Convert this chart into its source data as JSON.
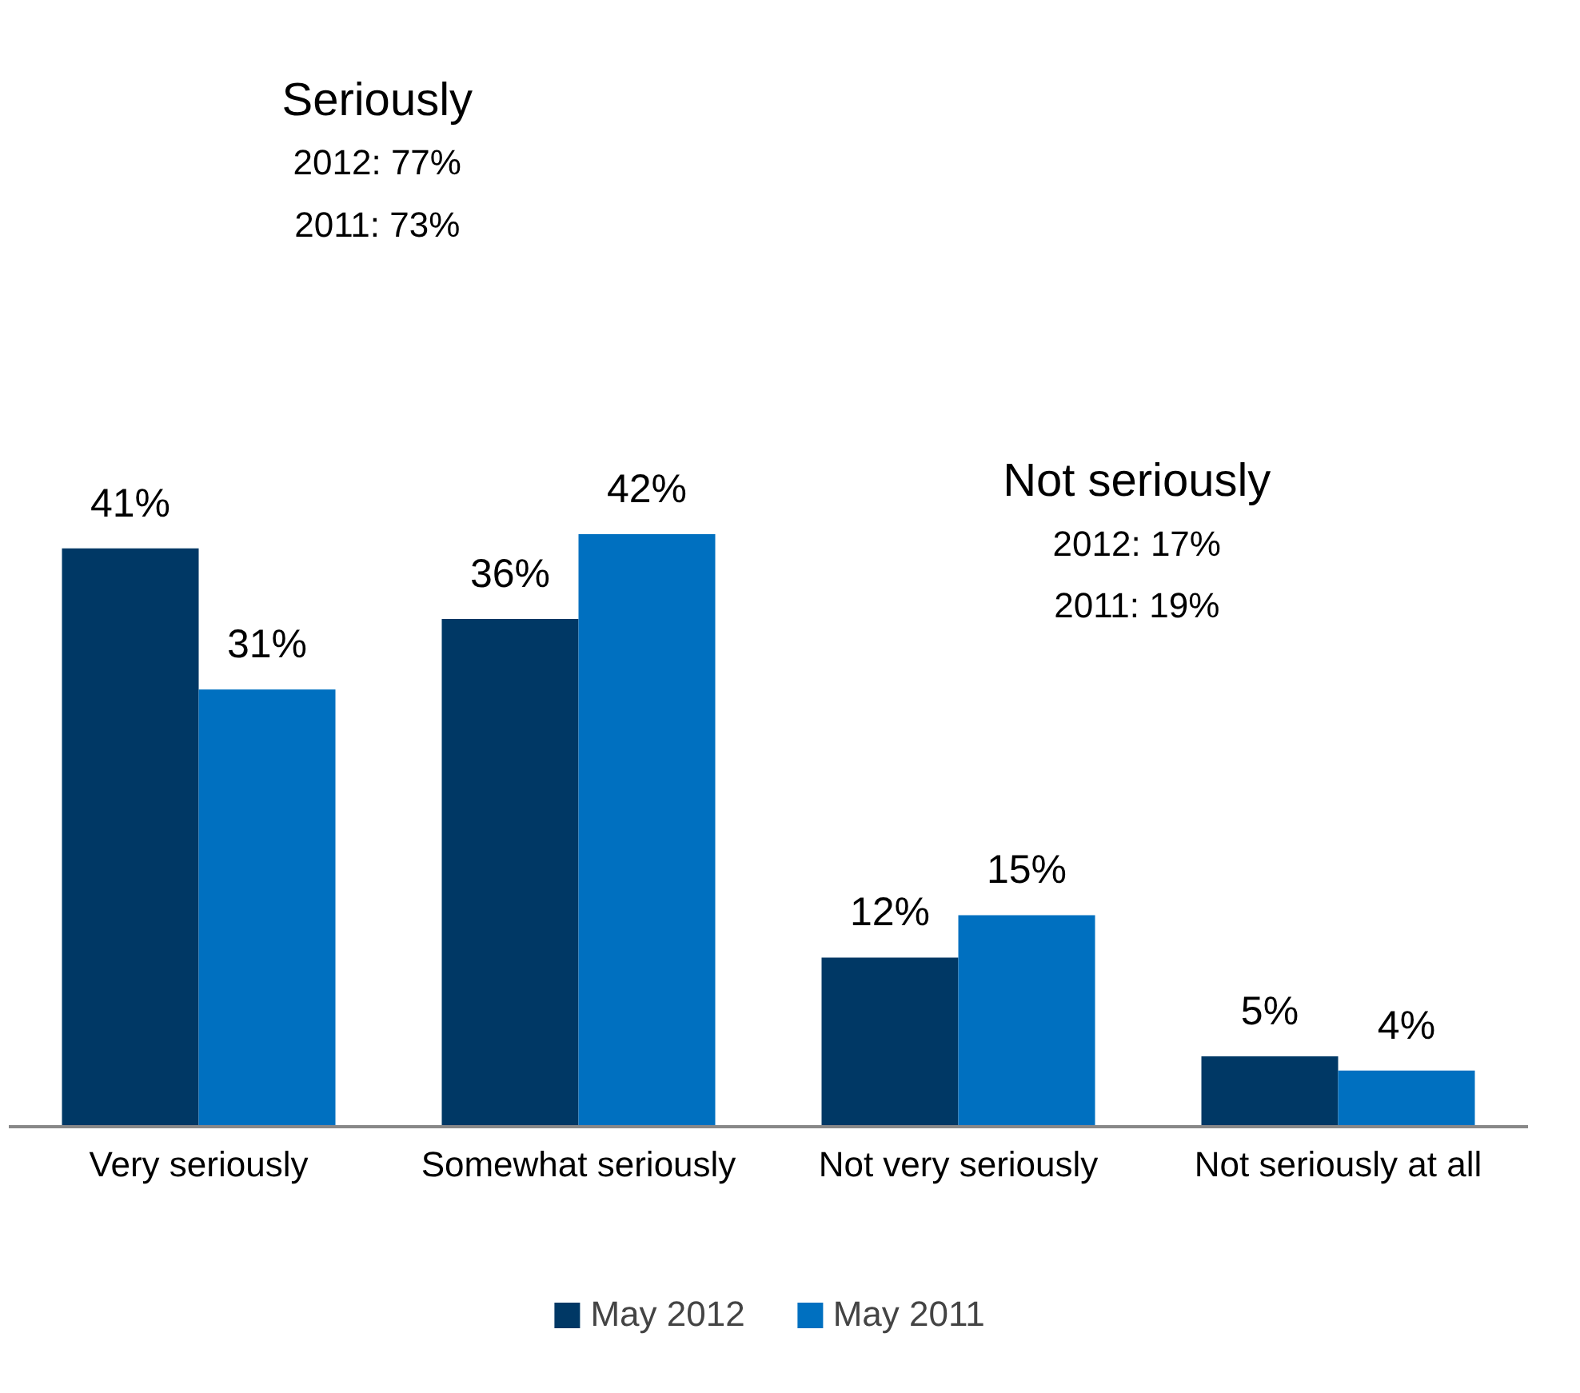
{
  "chart_data": {
    "type": "bar",
    "categories": [
      "Very seriously",
      "Somewhat seriously",
      "Not very seriously",
      "Not seriously at all"
    ],
    "series": [
      {
        "name": "May 2012",
        "color": "#003865",
        "values": [
          41,
          36,
          12,
          5
        ],
        "value_labels": [
          "41%",
          "36%",
          "12%",
          "5%"
        ]
      },
      {
        "name": "May 2011",
        "color": "#0070c0",
        "values": [
          31,
          42,
          15,
          4
        ],
        "value_labels": [
          "31%",
          "42%",
          "15%",
          "4%"
        ]
      }
    ],
    "grid": false,
    "legend": "bottom",
    "annotations": [
      "Seriously",
      "2012: 77%",
      "2011: 73%",
      "Not seriously",
      "2012: 17%",
      "2011: 19%"
    ]
  }
}
